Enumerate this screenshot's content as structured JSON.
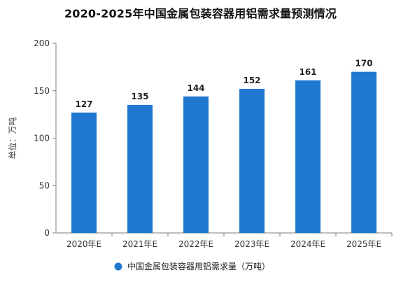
{
  "chart_data": {
    "type": "bar",
    "title": "2020-2025年中国金属包装容器用铝需求量预测情况",
    "ylabel": "单位：万吨",
    "xlabel": "",
    "categories": [
      "2020年E",
      "2021年E",
      "2022年E",
      "2023年E",
      "2024年E",
      "2025年E"
    ],
    "series": [
      {
        "name": "中国金属包装容器用铝需求量（万吨）",
        "values": [
          127,
          135,
          144,
          152,
          161,
          170
        ]
      }
    ],
    "ylim": [
      0,
      200
    ],
    "yticks": [
      0,
      50,
      100,
      150,
      200
    ],
    "grid": false,
    "legend": "bottom",
    "colors": {
      "bar": "#1f77d0"
    }
  }
}
